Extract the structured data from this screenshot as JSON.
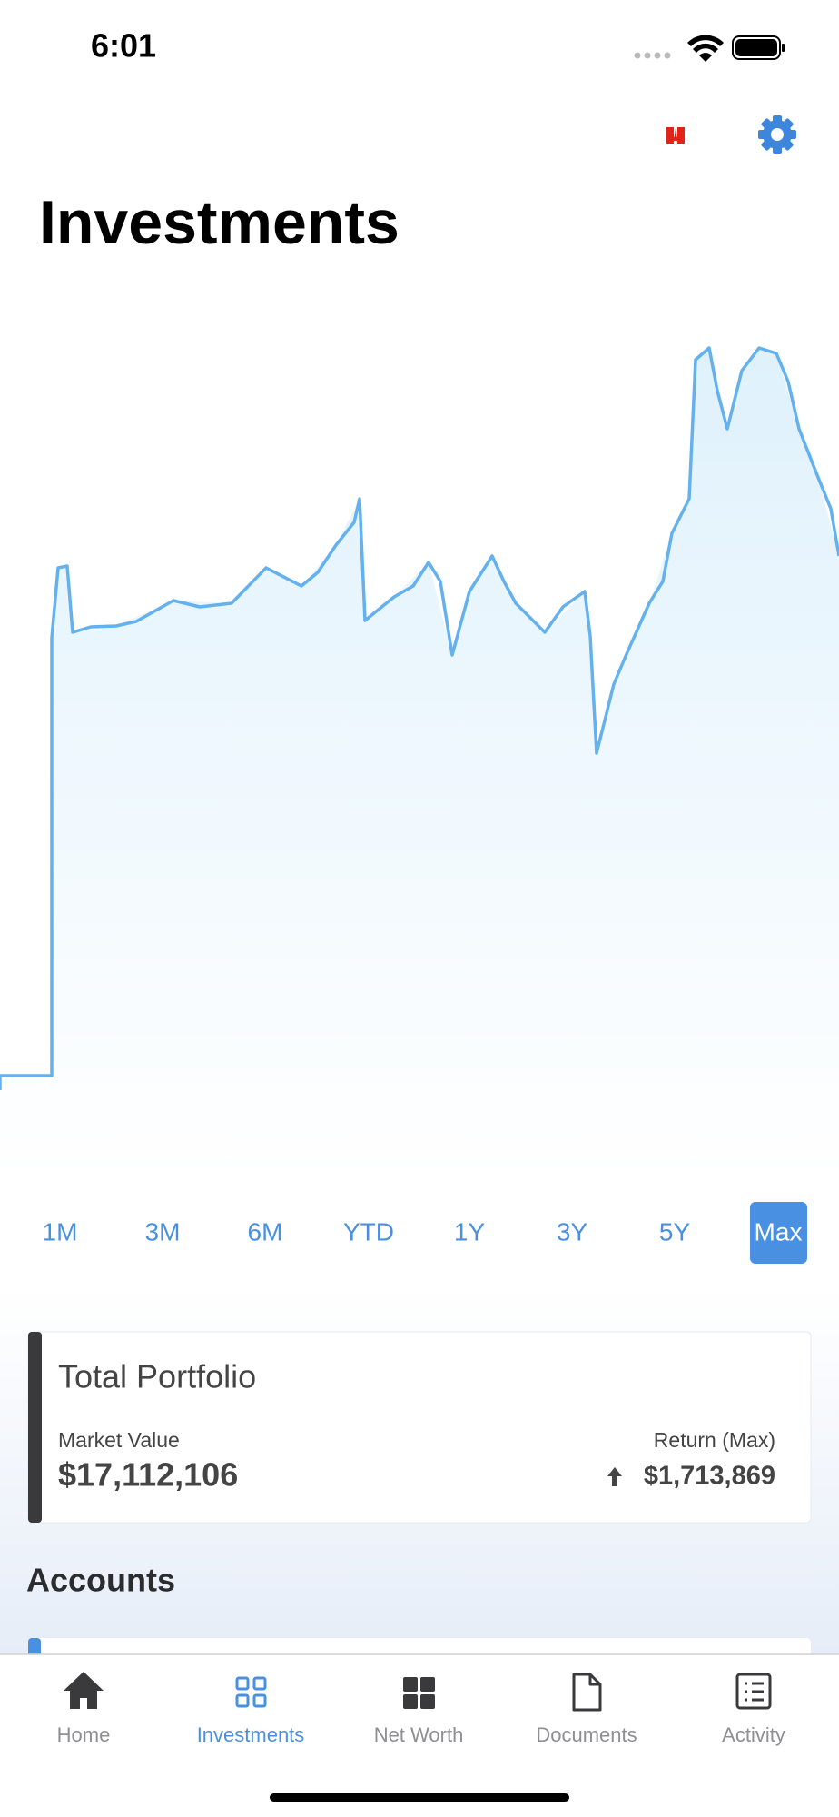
{
  "status": {
    "time": "6:01"
  },
  "header": {
    "title": "Investments"
  },
  "periods": {
    "options": [
      "1M",
      "3M",
      "6M",
      "YTD",
      "1Y",
      "3Y",
      "5Y",
      "Max"
    ],
    "selected": "Max"
  },
  "portfolio": {
    "title": "Total Portfolio",
    "market_value_label": "Market Value",
    "market_value": "$17,112,106",
    "return_label": "Return (Max)",
    "return_value": "$1,713,869"
  },
  "accounts": {
    "title": "Accounts"
  },
  "tabs": {
    "items": [
      "Home",
      "Investments",
      "Net Worth",
      "Documents",
      "Activity"
    ],
    "active": "Investments"
  }
}
